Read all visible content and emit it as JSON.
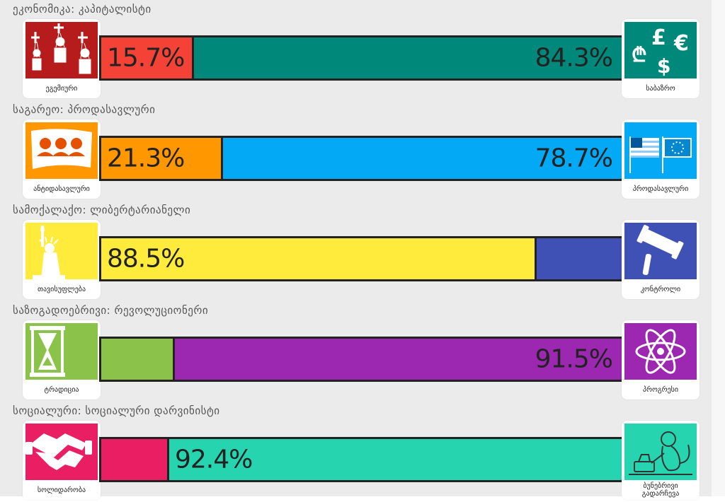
{
  "axes": [
    {
      "label": "ეკონომიკა: კაპიტალისტი",
      "left": {
        "caption": "ეგემიური",
        "percent": "15.7%",
        "value": 15.7,
        "color": "#f44336",
        "bg": "#b71c1c",
        "icon": "marionette-people-icon"
      },
      "right": {
        "caption": "საბაზრო",
        "percent": "84.3%",
        "value": 84.3,
        "color": "#00897b",
        "bg": "#00897b",
        "icon": "currency-symbols-icon"
      }
    },
    {
      "label": "საგარეო: პროდასავლური",
      "left": {
        "caption": "ანტიდასავლური",
        "percent": "21.3%",
        "value": 21.3,
        "color": "#ff9800",
        "bg": "#ff9800",
        "icon": "protest-flag-icon"
      },
      "right": {
        "caption": "პროდასავლური",
        "percent": "78.7%",
        "value": 78.7,
        "color": "#03a9f4",
        "bg": "#03a9f4",
        "icon": "us-eu-flags-icon"
      }
    },
    {
      "label": "სამოქალაქო: ლიბერტარიანელი",
      "left": {
        "caption": "თავისუფლება",
        "percent": "88.5%",
        "value": 88.5,
        "color": "#ffeb3b",
        "bg": "#ffeb3b",
        "icon": "statue-of-liberty-icon"
      },
      "right": {
        "caption": "კონტროლი",
        "percent": "",
        "value": 11.5,
        "color": "#3f51b5",
        "bg": "#3f51b5",
        "icon": "gavel-icon"
      }
    },
    {
      "label": "საზოგადოებრივი: რევოლუციონერი",
      "left": {
        "caption": "ტრადიცია",
        "percent": "",
        "value": 8.5,
        "color": "#8bc34a",
        "bg": "#8bc34a",
        "icon": "hourglass-icon"
      },
      "right": {
        "caption": "პროგრესი",
        "percent": "91.5%",
        "value": 91.5,
        "color": "#9c27b0",
        "bg": "#9c27b0",
        "icon": "atom-icon"
      }
    },
    {
      "label": "სოციალური: სოციალური დარვინისტი",
      "left": {
        "caption": "სოლიდარობა",
        "percent": "",
        "value": 7.6,
        "color": "#e91e63",
        "bg": "#e91e63",
        "icon": "handshake-icon"
      },
      "right": {
        "caption": "ბუნებრივი გადარჩევა",
        "percent": "92.4%",
        "value": 92.4,
        "color": "#26d4b0",
        "bg": "#26d4b0",
        "icon": "monkey-typewriter-icon",
        "pct_align": "left"
      }
    }
  ]
}
